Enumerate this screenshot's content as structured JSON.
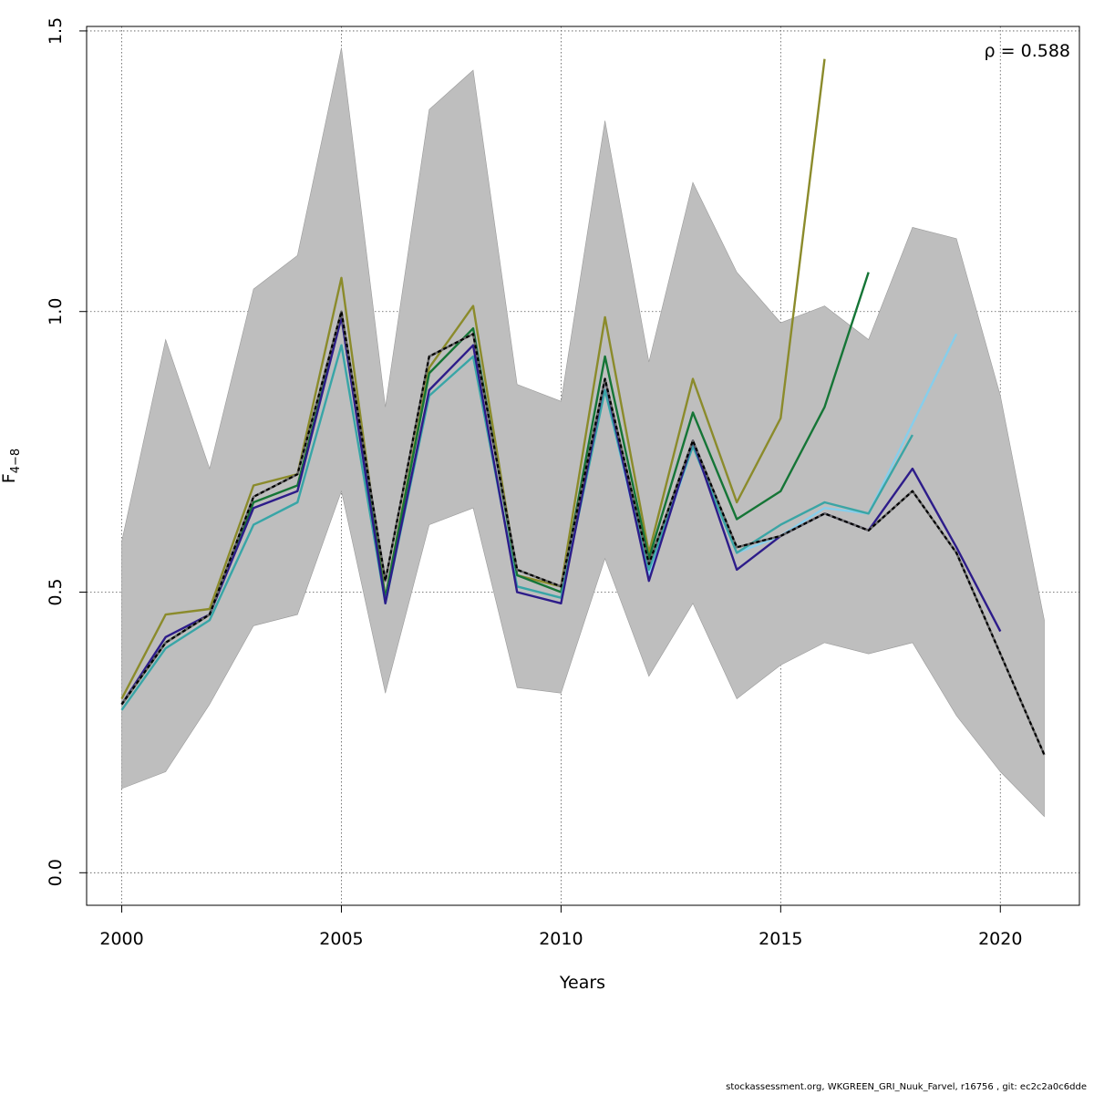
{
  "chart_data": {
    "type": "line",
    "xlabel": "Years",
    "ylabel_main": "F",
    "ylabel_sub": "4−8",
    "xlim": [
      1999.2,
      2021.8
    ],
    "ylim": [
      -0.058,
      1.508
    ],
    "xticks": [
      2000,
      2005,
      2010,
      2015,
      2020
    ],
    "yticks": [
      0.0,
      0.5,
      1.0,
      1.5
    ],
    "ytick_labels": [
      "0.0",
      "0.5",
      "1.0",
      "1.5"
    ],
    "grid": true,
    "annotation": "ρ = 0.588",
    "confidence_band": {
      "x": [
        2000,
        2001,
        2002,
        2003,
        2004,
        2005,
        2006,
        2007,
        2008,
        2009,
        2010,
        2011,
        2012,
        2013,
        2014,
        2015,
        2016,
        2017,
        2018,
        2019,
        2020,
        2021
      ],
      "upper": [
        0.59,
        0.95,
        0.72,
        1.04,
        1.1,
        1.47,
        0.83,
        1.36,
        1.43,
        0.87,
        0.84,
        1.34,
        0.91,
        1.23,
        1.07,
        0.98,
        1.01,
        0.95,
        1.15,
        1.13,
        0.85,
        0.45
      ],
      "lower": [
        0.15,
        0.18,
        0.3,
        0.44,
        0.46,
        0.68,
        0.32,
        0.62,
        0.65,
        0.33,
        0.32,
        0.56,
        0.35,
        0.48,
        0.31,
        0.37,
        0.41,
        0.39,
        0.41,
        0.28,
        0.18,
        0.1
      ],
      "color": "#bebebe"
    },
    "series": [
      {
        "color": "#8b8b2b",
        "x": [
          2000,
          2001,
          2002,
          2003,
          2004,
          2005,
          2006,
          2007,
          2008,
          2009,
          2010,
          2011,
          2012,
          2013,
          2014,
          2015,
          2016
        ],
        "values": [
          0.31,
          0.46,
          0.47,
          0.69,
          0.71,
          1.06,
          0.49,
          0.9,
          1.01,
          0.53,
          0.51,
          0.99,
          0.57,
          0.88,
          0.66,
          0.81,
          1.45
        ]
      },
      {
        "color": "#157536",
        "x": [
          2000,
          2001,
          2002,
          2003,
          2004,
          2005,
          2006,
          2007,
          2008,
          2009,
          2010,
          2011,
          2012,
          2013,
          2014,
          2015,
          2016,
          2017
        ],
        "values": [
          0.3,
          0.41,
          0.46,
          0.66,
          0.69,
          0.99,
          0.49,
          0.89,
          0.97,
          0.53,
          0.5,
          0.92,
          0.56,
          0.82,
          0.63,
          0.68,
          0.83,
          1.07
        ]
      },
      {
        "color": "#87ceeb",
        "x": [
          2000,
          2001,
          2002,
          2003,
          2004,
          2005,
          2006,
          2007,
          2008,
          2009,
          2010,
          2011,
          2012,
          2013,
          2014,
          2015,
          2016,
          2017,
          2018,
          2019
        ],
        "values": [
          0.29,
          0.4,
          0.45,
          0.62,
          0.66,
          0.94,
          0.48,
          0.85,
          0.92,
          0.51,
          0.49,
          0.86,
          0.53,
          0.76,
          0.57,
          0.6,
          0.65,
          0.64,
          0.8,
          0.96
        ]
      },
      {
        "color": "#3aa5a5",
        "x": [
          2000,
          2001,
          2002,
          2003,
          2004,
          2005,
          2006,
          2007,
          2008,
          2009,
          2010,
          2011,
          2012,
          2013,
          2014,
          2015,
          2016,
          2017,
          2018
        ],
        "values": [
          0.29,
          0.4,
          0.45,
          0.62,
          0.66,
          0.94,
          0.48,
          0.85,
          0.92,
          0.51,
          0.49,
          0.86,
          0.54,
          0.76,
          0.57,
          0.62,
          0.66,
          0.64,
          0.78
        ]
      },
      {
        "color": "#2d1c8a",
        "x": [
          2000,
          2001,
          2002,
          2003,
          2004,
          2005,
          2006,
          2007,
          2008,
          2009,
          2010,
          2011,
          2012,
          2013,
          2014,
          2015,
          2016,
          2017,
          2018,
          2019,
          2020
        ],
        "values": [
          0.3,
          0.42,
          0.46,
          0.65,
          0.68,
          0.99,
          0.48,
          0.86,
          0.94,
          0.5,
          0.48,
          0.88,
          0.52,
          0.77,
          0.54,
          0.6,
          0.64,
          0.61,
          0.72,
          0.58,
          0.43
        ]
      },
      {
        "color": "#000000",
        "dash": true,
        "x": [
          2000,
          2001,
          2002,
          2003,
          2004,
          2005,
          2006,
          2007,
          2008,
          2009,
          2010,
          2011,
          2012,
          2013,
          2014,
          2015,
          2016,
          2017,
          2018,
          2019,
          2020,
          2021
        ],
        "values": [
          0.3,
          0.41,
          0.46,
          0.67,
          0.71,
          1.0,
          0.52,
          0.92,
          0.96,
          0.54,
          0.51,
          0.88,
          0.55,
          0.77,
          0.58,
          0.6,
          0.64,
          0.61,
          0.68,
          0.57,
          0.39,
          0.21
        ]
      }
    ]
  },
  "footer": {
    "text": "stockassessment.org, WKGREEN_GRI_Nuuk_Farvel, r16756 , git: ec2c2a0c6dde"
  }
}
